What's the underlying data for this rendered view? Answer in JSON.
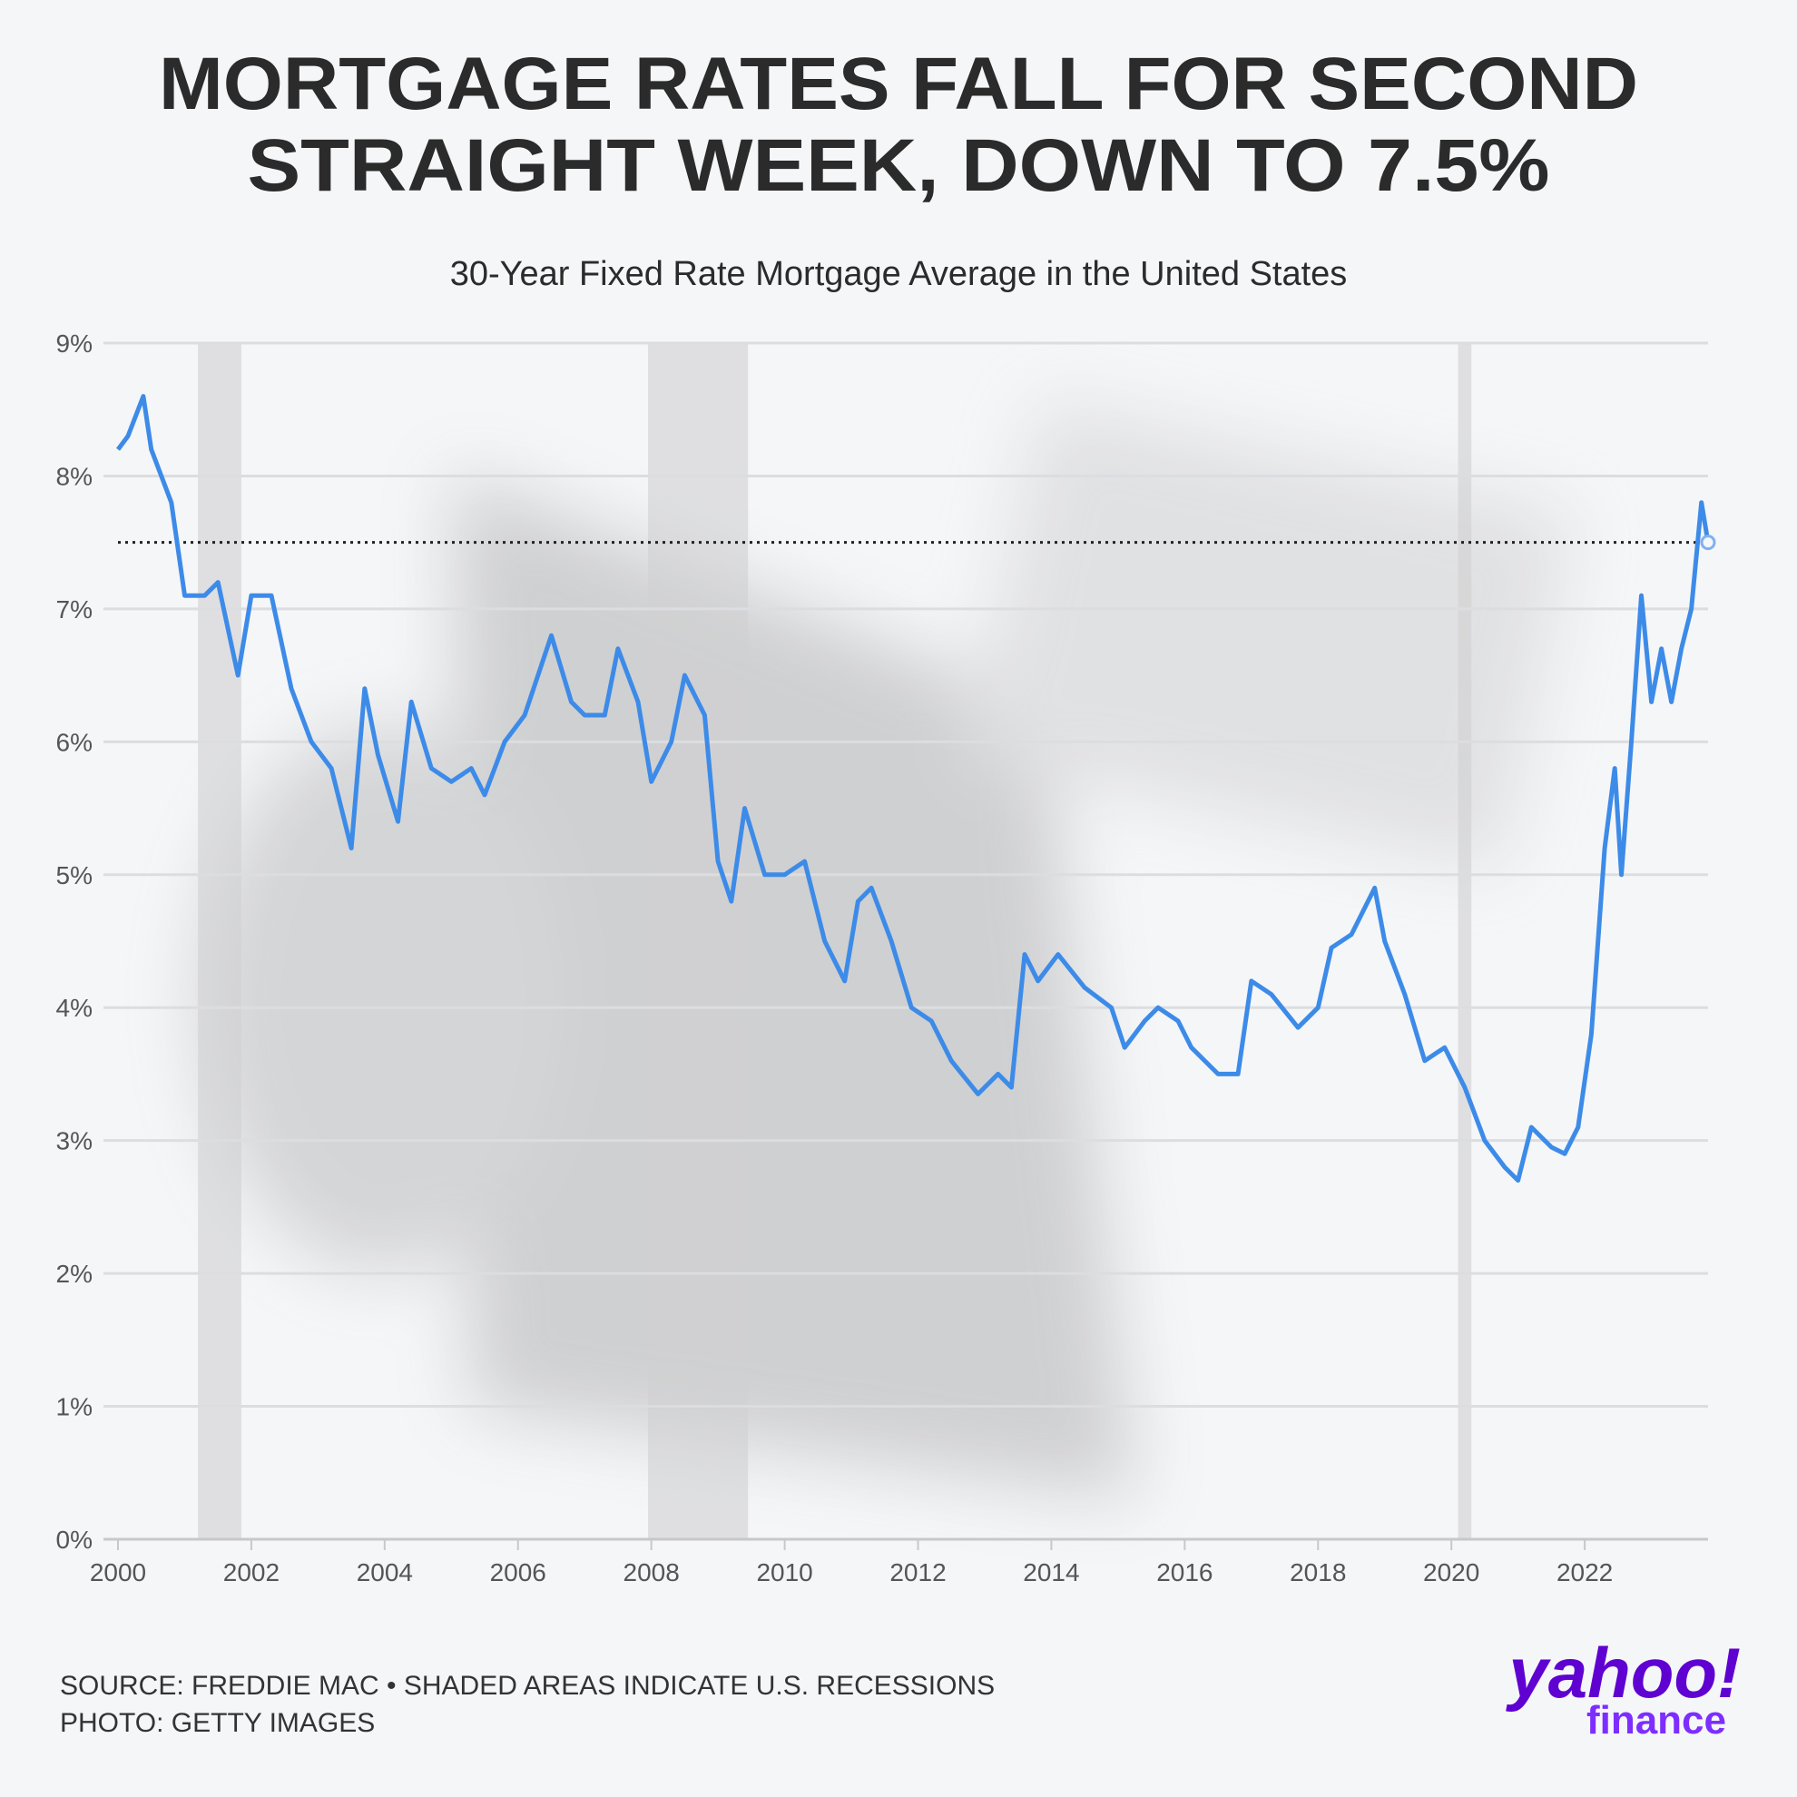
{
  "chart_data": {
    "type": "line",
    "title": [
      "MORTGAGE RATES FALL FOR SECOND",
      "STRAIGHT WEEK, DOWN TO 7.5%"
    ],
    "subtitle": "30-Year Fixed Rate Mortgage Average in the United States",
    "x": [
      2000.0,
      2000.15,
      2000.38,
      2000.5,
      2000.8,
      2001.0,
      2001.3,
      2001.5,
      2001.8,
      2002.0,
      2002.3,
      2002.6,
      2002.9,
      2003.2,
      2003.5,
      2003.7,
      2003.9,
      2004.2,
      2004.4,
      2004.7,
      2005.0,
      2005.3,
      2005.5,
      2005.8,
      2006.1,
      2006.5,
      2006.8,
      2007.0,
      2007.3,
      2007.5,
      2007.8,
      2008.0,
      2008.3,
      2008.5,
      2008.8,
      2009.0,
      2009.2,
      2009.4,
      2009.7,
      2010.0,
      2010.3,
      2010.6,
      2010.9,
      2011.1,
      2011.3,
      2011.6,
      2011.9,
      2012.2,
      2012.5,
      2012.9,
      2013.2,
      2013.4,
      2013.6,
      2013.8,
      2014.1,
      2014.5,
      2014.9,
      2015.1,
      2015.4,
      2015.6,
      2015.9,
      2016.1,
      2016.5,
      2016.8,
      2017.0,
      2017.3,
      2017.7,
      2018.0,
      2018.2,
      2018.5,
      2018.85,
      2019.0,
      2019.3,
      2019.6,
      2019.9,
      2020.2,
      2020.5,
      2020.8,
      2021.0,
      2021.2,
      2021.5,
      2021.7,
      2021.9,
      2022.1,
      2022.3,
      2022.45,
      2022.55,
      2022.7,
      2022.85,
      2023.0,
      2023.15,
      2023.3,
      2023.45,
      2023.6,
      2023.75,
      2023.85
    ],
    "values": [
      8.2,
      8.3,
      8.6,
      8.2,
      7.8,
      7.1,
      7.1,
      7.2,
      6.5,
      7.1,
      7.1,
      6.4,
      6.0,
      5.8,
      5.2,
      6.4,
      5.9,
      5.4,
      6.3,
      5.8,
      5.7,
      5.8,
      5.6,
      6.0,
      6.2,
      6.8,
      6.3,
      6.2,
      6.2,
      6.7,
      6.3,
      5.7,
      6.0,
      6.5,
      6.2,
      5.1,
      4.8,
      5.5,
      5.0,
      5.0,
      5.1,
      4.5,
      4.2,
      4.8,
      4.9,
      4.5,
      4.0,
      3.9,
      3.6,
      3.35,
      3.5,
      3.4,
      4.4,
      4.2,
      4.4,
      4.15,
      4.0,
      3.7,
      3.9,
      4.0,
      3.9,
      3.7,
      3.5,
      3.5,
      4.2,
      4.1,
      3.85,
      4.0,
      4.45,
      4.55,
      4.9,
      4.5,
      4.1,
      3.6,
      3.7,
      3.4,
      3.0,
      2.8,
      2.7,
      3.1,
      2.95,
      2.9,
      3.1,
      3.8,
      5.2,
      5.8,
      5.0,
      6.0,
      7.1,
      6.3,
      6.7,
      6.3,
      6.7,
      7.0,
      7.8,
      7.5
    ],
    "color": "#3d8be8",
    "xlim": [
      2000,
      2023.85
    ],
    "xticks": [
      2000,
      2002,
      2004,
      2006,
      2008,
      2010,
      2012,
      2014,
      2016,
      2018,
      2020,
      2022
    ],
    "ylim": [
      0,
      9
    ],
    "yticks": [
      {
        "value": 0,
        "label": "0%"
      },
      {
        "value": 1,
        "label": "1%"
      },
      {
        "value": 2,
        "label": "2%"
      },
      {
        "value": 3,
        "label": "3%"
      },
      {
        "value": 4,
        "label": "4%"
      },
      {
        "value": 5,
        "label": "5%"
      },
      {
        "value": 6,
        "label": "6%"
      },
      {
        "value": 7,
        "label": "7%"
      },
      {
        "value": 8,
        "label": "8%"
      },
      {
        "value": 9,
        "label": "9%"
      }
    ],
    "grid": true,
    "reference_line": 7.5,
    "recessions": [
      [
        2001.2,
        2001.85
      ],
      [
        2007.95,
        2009.45
      ],
      [
        2020.1,
        2020.3
      ]
    ],
    "source": "SOURCE: FREDDIE MAC • SHADED AREAS INDICATE U.S. RECESSIONS",
    "photo": "PHOTO: GETTY IMAGES",
    "logo": [
      "yahoo!",
      "finance"
    ]
  }
}
